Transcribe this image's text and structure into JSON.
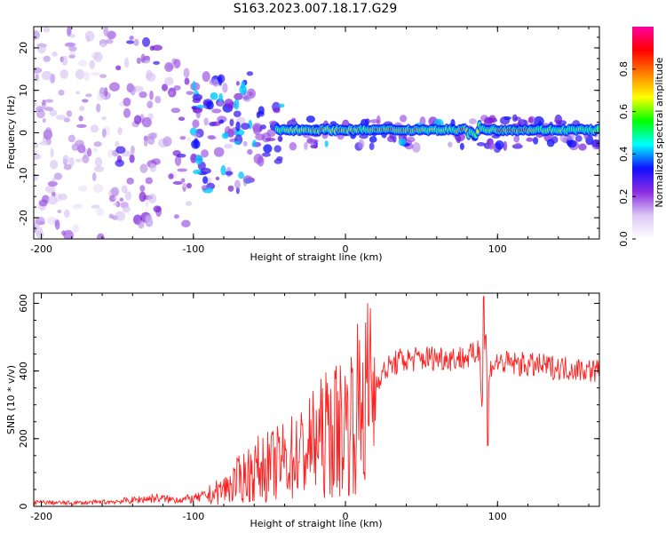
{
  "title": "S163.2023.007.18.17.G29",
  "chart_data": [
    {
      "type": "heatmap",
      "xlabel": "Height of straight line (km)",
      "ylabel": "Frequency (Hz)",
      "xlim": [
        -205,
        167
      ],
      "ylim": [
        -25,
        25
      ],
      "xticks": [
        -200,
        -100,
        0,
        100
      ],
      "yticks": [
        -20,
        -10,
        0,
        10,
        20
      ],
      "colorbar": {
        "label": "Normalized spectral amplitude",
        "range": [
          0,
          1
        ],
        "ticks": [
          "0.0",
          "0.2",
          "0.4",
          "0.6",
          "0.8"
        ],
        "colors": [
          "#ffffff",
          "#dcc8f5",
          "#8a2be2",
          "#1010ff",
          "#00ffff",
          "#00ff00",
          "#ffff00",
          "#ff8000",
          "#ff0000",
          "#ff00a0"
        ]
      },
      "dominant_band_hz": 0.7,
      "band_visible_from_km": -45
    },
    {
      "type": "line",
      "xlabel": "Height of straight line (km)",
      "ylabel": "SNR (10 * v/v)",
      "xlim": [
        -205,
        167
      ],
      "ylim": [
        0,
        630
      ],
      "xticks": [
        -200,
        -100,
        0,
        100
      ],
      "yticks": [
        0,
        200,
        400,
        600
      ],
      "series": [
        {
          "color": "#ff2020",
          "x": [
            -205,
            -180,
            -160,
            -140,
            -125,
            -115,
            -100,
            -88,
            -78,
            -68,
            -58,
            -48,
            -38,
            -28,
            -20,
            -10,
            0,
            8,
            15,
            22,
            28,
            35,
            45,
            60,
            75,
            85,
            88,
            90,
            92,
            94,
            96,
            100,
            120,
            140,
            155,
            167
          ],
          "y": [
            12,
            10,
            12,
            18,
            25,
            20,
            22,
            35,
            55,
            85,
            110,
            120,
            140,
            160,
            190,
            220,
            240,
            290,
            330,
            380,
            410,
            430,
            435,
            440,
            438,
            445,
            470,
            300,
            520,
            350,
            420,
            425,
            418,
            410,
            405,
            400
          ]
        }
      ]
    }
  ]
}
